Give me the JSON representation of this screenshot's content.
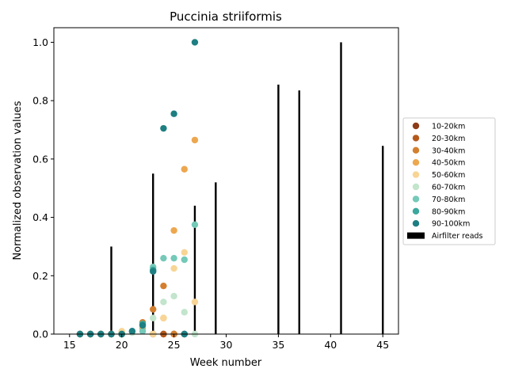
{
  "chart_data": {
    "type": "scatter",
    "title": "Puccinia striiformis",
    "xlabel": "Week number",
    "ylabel": "Normalized observation values",
    "xlim": [
      13.5,
      46.5
    ],
    "ylim": [
      0,
      1.05
    ],
    "xticks": [
      15,
      20,
      25,
      30,
      35,
      40,
      45
    ],
    "yticks": [
      0.0,
      0.2,
      0.4,
      0.6,
      0.8,
      1.0
    ],
    "xtick_labels": [
      "15",
      "20",
      "25",
      "30",
      "35",
      "40",
      "45"
    ],
    "ytick_labels": [
      "0.0",
      "0.2",
      "0.4",
      "0.6",
      "0.8",
      "1.0"
    ],
    "grid": false,
    "legend_position": "right",
    "airfilter": {
      "name": "Airfilter reads",
      "color": "#000000",
      "x": [
        19,
        23,
        27,
        29,
        35,
        37,
        41,
        45
      ],
      "values": [
        0.3,
        0.55,
        0.44,
        0.52,
        0.855,
        0.835,
        1.0,
        0.645
      ]
    },
    "series": [
      {
        "name": "10-20km",
        "color": "#8c3d18",
        "x": [
          16,
          17,
          18,
          19,
          20,
          23,
          24,
          25,
          26
        ],
        "values": [
          0,
          0,
          0,
          0,
          0,
          0,
          0,
          0,
          0
        ]
      },
      {
        "name": "20-30km",
        "color": "#b5591b",
        "x": [
          16,
          17,
          18,
          19,
          20,
          24,
          25
        ],
        "values": [
          0,
          0,
          0,
          0,
          0,
          0,
          0
        ]
      },
      {
        "name": "30-40km",
        "color": "#d47f2e",
        "x": [
          16,
          17,
          18,
          19,
          20,
          22,
          23,
          24,
          25
        ],
        "values": [
          0,
          0,
          0,
          0,
          0,
          0.04,
          0.085,
          0.165,
          0
        ]
      },
      {
        "name": "40-50km",
        "color": "#eda74f",
        "x": [
          20,
          22,
          24,
          25,
          26,
          27
        ],
        "values": [
          0.005,
          0.02,
          0.055,
          0.355,
          0.565,
          0.665
        ]
      },
      {
        "name": "50-60km",
        "color": "#f8d595",
        "x": [
          20,
          23,
          24,
          25,
          26,
          27
        ],
        "values": [
          0.01,
          0,
          0.055,
          0.225,
          0.28,
          0.11
        ]
      },
      {
        "name": "60-70km",
        "color": "#c2e5cc",
        "x": [
          21,
          23,
          24,
          25,
          26,
          27
        ],
        "values": [
          0.005,
          0.055,
          0.11,
          0.13,
          0.075,
          0
        ]
      },
      {
        "name": "70-80km",
        "color": "#74c9b8",
        "x": [
          22,
          23,
          24,
          25,
          26,
          27
        ],
        "values": [
          0.01,
          0.23,
          0.26,
          0.26,
          0.255,
          0.375
        ]
      },
      {
        "name": "80-90km",
        "color": "#3aa89c",
        "x": [
          16,
          17,
          18,
          19,
          20,
          21,
          22,
          23,
          26
        ],
        "values": [
          0,
          0,
          0,
          0,
          0,
          0.01,
          0.035,
          0.22,
          0
        ]
      },
      {
        "name": "90-100km",
        "color": "#1e7f82",
        "x": [
          16,
          17,
          18,
          19,
          20,
          21,
          22,
          23,
          24,
          25,
          26,
          27
        ],
        "values": [
          0,
          0,
          0,
          0,
          0,
          0.01,
          0.03,
          0.215,
          0.705,
          0.755,
          0,
          1.0
        ]
      }
    ]
  }
}
